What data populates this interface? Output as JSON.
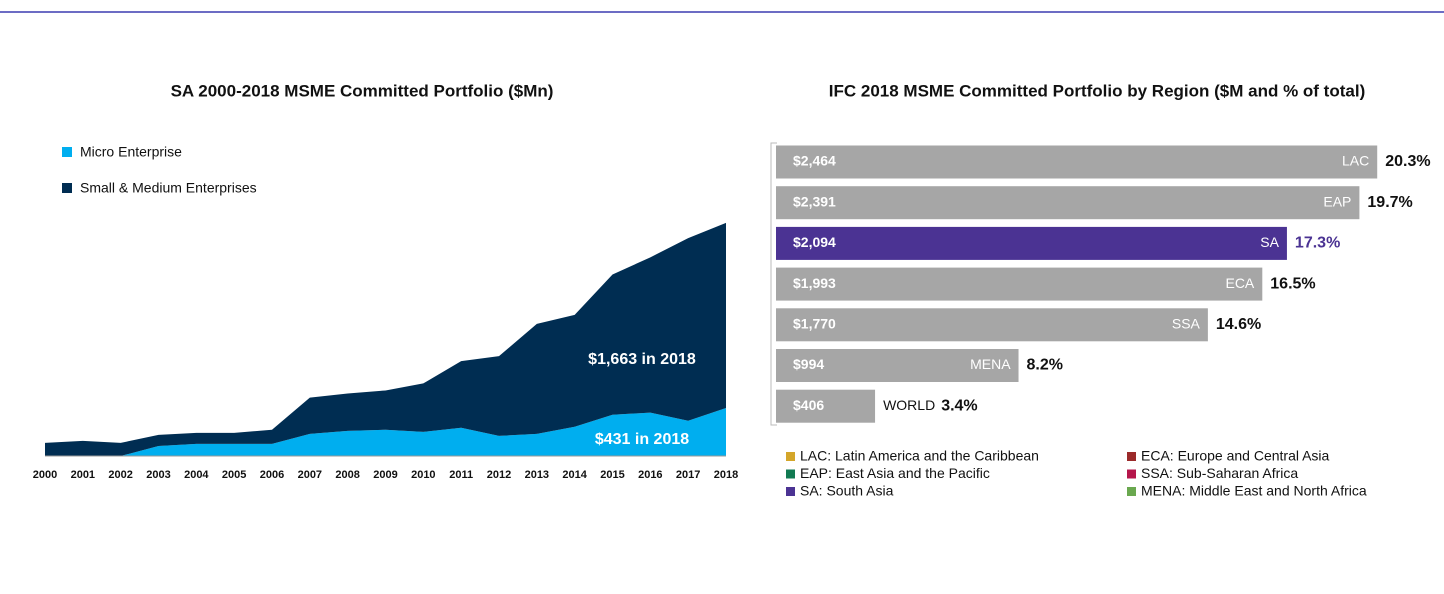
{
  "chart_data": [
    {
      "type": "area",
      "stacked": true,
      "title": "SA 2000-2018 MSME Committed Portfolio ($Mn)",
      "x": [
        2000,
        2001,
        2002,
        2003,
        2004,
        2005,
        2006,
        2007,
        2008,
        2009,
        2010,
        2011,
        2012,
        2013,
        2014,
        2015,
        2016,
        2017,
        2018
      ],
      "series": [
        {
          "name": "Micro Enterprise",
          "color": "#00aeef",
          "values": [
            0,
            0,
            0,
            90,
            109,
            109,
            109,
            199,
            226,
            236,
            217,
            254,
            181,
            199,
            263,
            371,
            390,
            317,
            431
          ]
        },
        {
          "name": "Small & Medium Enterprises",
          "color": "#002d52",
          "values": [
            118,
            136,
            118,
            100,
            99,
            99,
            127,
            326,
            336,
            353,
            435,
            598,
            716,
            988,
            1005,
            1260,
            1395,
            1640,
            1663
          ]
        }
      ],
      "ylim": [
        0,
        2300
      ],
      "annotations": [
        "$1,663 in 2018",
        "$431 in 2018"
      ]
    },
    {
      "type": "hbar",
      "title": "IFC 2018 MSME Committed Portfolio by Region ($M and % of total)",
      "categories": [
        "LAC",
        "EAP",
        "SA",
        "ECA",
        "SSA",
        "MENA",
        "WORLD"
      ],
      "values": [
        2464,
        2391,
        2094,
        1993,
        1770,
        994,
        406
      ],
      "value_labels": [
        "$2,464",
        "$2,391",
        "$2,094",
        "$1,993",
        "$1,770",
        "$994",
        "$406"
      ],
      "shares": [
        20.3,
        19.7,
        17.3,
        16.5,
        14.6,
        8.2,
        3.4
      ],
      "share_labels": [
        "20.3%",
        "19.7%",
        "17.3%",
        "16.5%",
        "14.6%",
        "8.2%",
        "3.4%"
      ],
      "color": "#a6a6a6",
      "highlight": "SA",
      "highlight_color": "#4b3393",
      "xlim": [
        0,
        2500
      ],
      "legend": [
        {
          "label": "LAC:  Latin America and the Caribbean",
          "color": "#d4a62a"
        },
        {
          "label": "ECA: Europe and Central Asia",
          "color": "#9b2a2a"
        },
        {
          "label": "EAP: East Asia and the Pacific",
          "color": "#127a52"
        },
        {
          "label": "SSA: Sub-Saharan Africa",
          "color": "#b5164b"
        },
        {
          "label": "SA: South Asia",
          "color": "#4b3393"
        },
        {
          "label": "MENA: Middle East and North Africa",
          "color": "#6aa84f"
        }
      ]
    }
  ]
}
